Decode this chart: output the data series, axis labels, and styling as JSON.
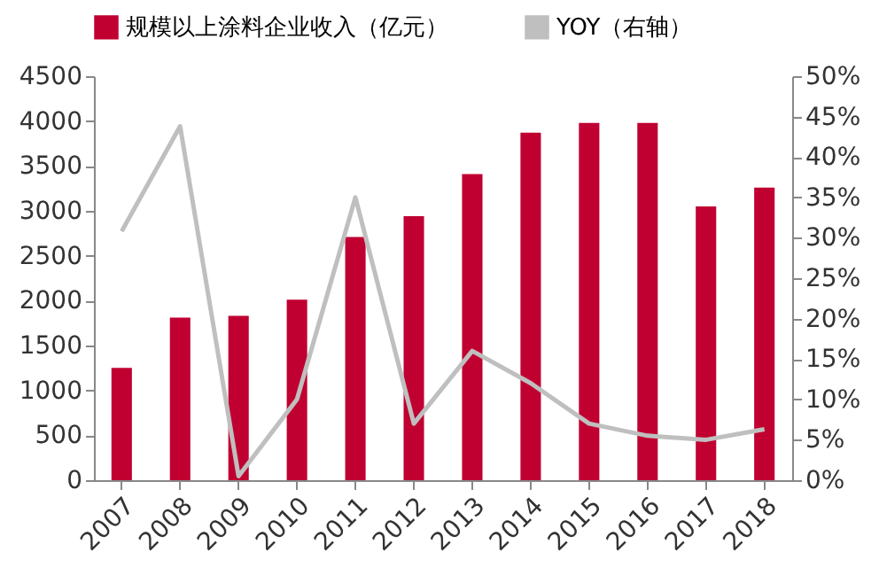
{
  "chart_data": {
    "type": "bar",
    "categories": [
      "2007",
      "2008",
      "2009",
      "2010",
      "2011",
      "2012",
      "2013",
      "2014",
      "2015",
      "2016",
      "2017",
      "2018"
    ],
    "series": [
      {
        "name": "规模以上涂料企业收入（亿元）",
        "color": "#c00030",
        "values": [
          1250,
          1810,
          1830,
          2010,
          2710,
          2940,
          3410,
          3870,
          3980,
          3980,
          3050,
          3260
        ]
      },
      {
        "name": "YOY（右轴）",
        "type": "line",
        "axis": "y2",
        "color": "#bfbfbf",
        "values": [
          30.8,
          43.8,
          0.5,
          10,
          35,
          7,
          16,
          12,
          7,
          5.5,
          5,
          6.3
        ]
      }
    ],
    "ylim": [
      0,
      4500
    ],
    "yticks": [
      0,
      500,
      1000,
      1500,
      2000,
      2500,
      3000,
      3500,
      4000,
      4500
    ],
    "y2lim": [
      0,
      50
    ],
    "y2ticks": [
      {
        "value": 0,
        "label": "0%"
      },
      {
        "value": 5,
        "label": "5%"
      },
      {
        "value": 10,
        "label": "10%"
      },
      {
        "value": 15,
        "label": "15%"
      },
      {
        "value": 20,
        "label": "20%"
      },
      {
        "value": 25,
        "label": "25%"
      },
      {
        "value": 30,
        "label": "30%"
      },
      {
        "value": 35,
        "label": "35%"
      },
      {
        "value": 40,
        "label": "40%"
      },
      {
        "value": 45,
        "label": "45%"
      },
      {
        "value": 50,
        "label": "50%"
      }
    ],
    "legend": "top",
    "grid": false,
    "marker": "none"
  }
}
